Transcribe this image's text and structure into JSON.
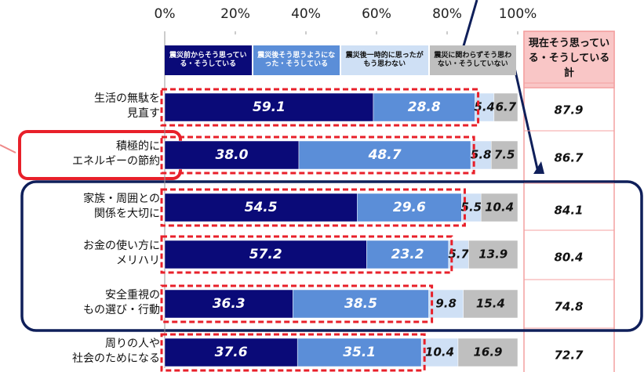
{
  "chart_data": {
    "type": "stacked-bar-horizontal",
    "categories": [
      "生活の無駄を\n見直す",
      "積極的に\nエネルギーの節約",
      "家族・周囲との\n関係を大切に",
      "お金の使い方に\nメリハリ",
      "安全重視の\nもの選び・行動",
      "周りの人や\n社会のためになる"
    ],
    "series": [
      {
        "name": "震災前からそう思っている・そうしている",
        "color": "#0a0a78",
        "values": [
          59.1,
          38.0,
          54.5,
          57.2,
          36.3,
          37.6
        ],
        "value_labels": [
          "59.1",
          "38.0",
          "54.5",
          "57.2",
          "36.3",
          "37.6"
        ]
      },
      {
        "name": "震災後そう思うようになった・そうしている",
        "color": "#5b8ed8",
        "values": [
          28.8,
          48.7,
          29.6,
          23.2,
          38.5,
          35.1
        ]
      },
      {
        "name": "震災後一時的に思ったがもう思わない",
        "color": "#cfe0f5",
        "values": [
          5.4,
          5.8,
          5.5,
          5.7,
          9.8,
          10.4
        ]
      },
      {
        "name": "震災に関わらずそう思わない・そうしていない",
        "color": "#bfbfbf",
        "values": [
          6.7,
          7.5,
          10.4,
          13.9,
          15.4,
          16.9
        ]
      }
    ],
    "xlim": [
      0,
      100
    ],
    "xticks": [
      {
        "value": 0,
        "label": "0%"
      },
      {
        "value": 20,
        "label": "20%"
      },
      {
        "value": 40,
        "label": "40%"
      },
      {
        "value": 60,
        "label": "60%"
      },
      {
        "value": 80,
        "label": "80%"
      },
      {
        "value": 100,
        "label": "100%"
      }
    ],
    "total": {
      "title": "現在そう思っている・そうしている 計",
      "values": [
        87.9,
        86.7,
        84.1,
        80.4,
        74.8,
        72.7
      ]
    }
  }
}
